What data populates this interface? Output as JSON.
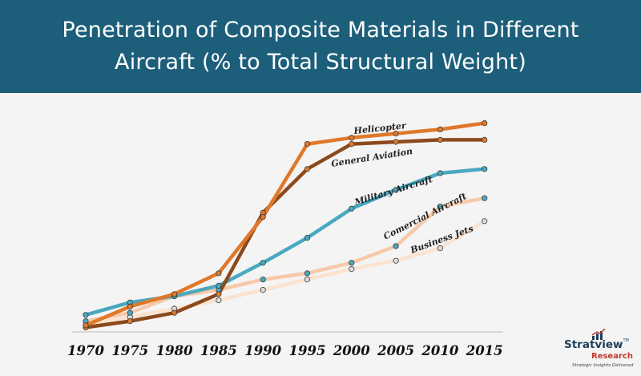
{
  "header": {
    "title_line1": "Penetration of Composite Materials in Different",
    "title_line2": "Aircraft (% to Total Structural Weight)"
  },
  "logo": {
    "name": "Stratview",
    "trademark": "TM",
    "sub": "Research",
    "tagline": "Strategic Insights Delivered"
  },
  "colors": {
    "header_bg": "#1d5f7a",
    "helicopter": "#e0782a",
    "general_aviation": "#8c4a1c",
    "military_aircraft": "#4aa8c0",
    "commercial_aircraft": "#f7c9a8",
    "business_jets": "#fbe3d0"
  },
  "chart_data": {
    "type": "line",
    "title": "Penetration of Composite Materials in Different Aircraft (% to Total Structural Weight)",
    "x": [
      "1970",
      "1975",
      "1980",
      "1985",
      "1990",
      "1995",
      "2000",
      "2005",
      "2010",
      "2015"
    ],
    "ylim": [
      0,
      100
    ],
    "grid": false,
    "legend": "inline labels",
    "series": [
      {
        "name": "Helicopter",
        "color": "#e0782a",
        "marker": "#e0782a",
        "values": [
          2,
          11,
          17,
          27,
          54,
          89,
          92,
          94,
          96,
          99
        ]
      },
      {
        "name": "General Aviation",
        "color": "#8c4a1c",
        "marker": "#e0782a",
        "values": [
          1,
          4,
          8,
          17,
          56,
          77,
          89,
          90,
          91,
          91
        ]
      },
      {
        "name": "Military Aircraft",
        "color": "#4aa8c0",
        "marker": "#4aa8c0",
        "values": [
          7,
          13,
          16,
          21,
          32,
          44,
          58,
          67,
          75,
          77
        ]
      },
      {
        "name": "Comercial Aircraft",
        "color": "#f7c9a8",
        "marker": "#4aa8c0",
        "values": [
          4,
          8,
          16,
          19,
          24,
          27,
          32,
          40,
          59,
          63
        ]
      },
      {
        "name": "Business Jets",
        "color": "#fbe3d0",
        "marker": "#dcdcdc",
        "values": [
          2,
          6,
          10,
          14,
          19,
          24,
          29,
          33,
          39,
          52
        ]
      }
    ]
  }
}
